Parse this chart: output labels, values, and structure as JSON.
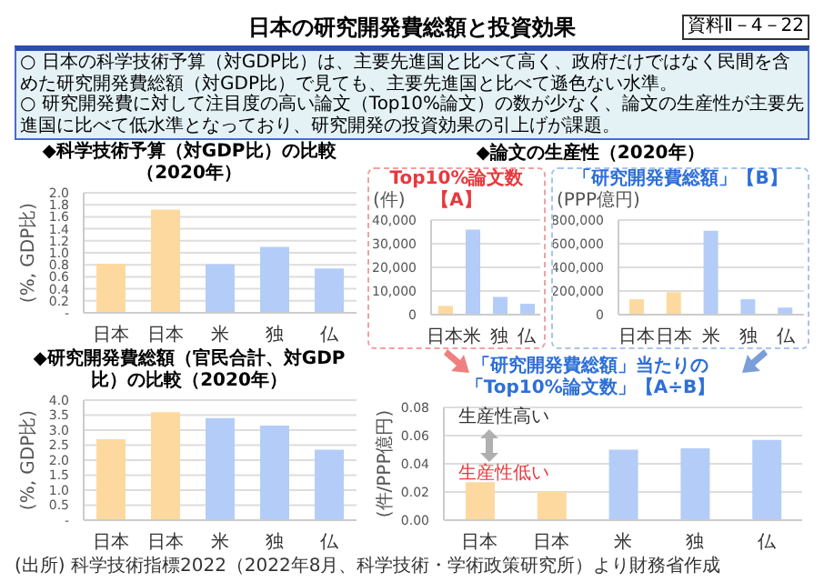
{
  "chart_data": [
    {
      "type": "other",
      "title": "日本の研究開発費総額と投資効果",
      "annotations": [
        "資料Ⅱ－4－22",
        "○ 日本の科学技術予算（対GDP比）は、主要先進国と比べて高く、政府だけではなく民間を含めた研究開発費総額（対GDP比）で見ても、主要先進国と比べて遜色ない水準。",
        "○ 研究開発費に対して注目度の高い論文（Top10%論文）の数が少なく、論文の生産性が主要先進国に比べて低水準となっており、研究開発の投資効果の引上げが課題。",
        "◆論文の生産性（2020年）"
      ]
    },
    {
      "type": "bar",
      "title": "◆科学技術予算（対GDP比）の比較（2020年）",
      "ylabel": "(%, GDP比)",
      "categories": [
        "日本",
        "日本",
        "米",
        "独",
        "仏"
      ],
      "values": [
        0.82,
        1.72,
        0.81,
        1.1,
        0.74
      ],
      "colors": [
        "#fdd9a0",
        "#fdd9a0",
        "#b4cdf8",
        "#b4cdf8",
        "#b4cdf8"
      ],
      "ylim": [
        0,
        2
      ],
      "yticks": [
        {
          "value": 0,
          "label": "-"
        },
        {
          "value": 0.2,
          "label": "0.2"
        },
        {
          "value": 0.4,
          "label": "0.4"
        },
        {
          "value": 0.6,
          "label": "0.6"
        },
        {
          "value": 0.8,
          "label": "0.8"
        },
        {
          "value": 1,
          "label": "1.0"
        },
        {
          "value": 1.2,
          "label": "1.2"
        },
        {
          "value": 1.4,
          "label": "1.4"
        },
        {
          "value": 1.6,
          "label": "1.6"
        },
        {
          "value": 1.8,
          "label": "1.8"
        },
        {
          "value": 2,
          "label": "2.0"
        }
      ],
      "grid": "y",
      "legend": false
    },
    {
      "type": "bar",
      "title": "◆研究開発費総額（官民合計、対GDP比）の比較（2020年）",
      "ylabel": "(%, GDP比)",
      "categories": [
        "日本",
        "日本",
        "米",
        "独",
        "仏"
      ],
      "values": [
        2.7,
        3.6,
        3.4,
        3.15,
        2.35
      ],
      "colors": [
        "#fdd9a0",
        "#fdd9a0",
        "#b4cdf8",
        "#b4cdf8",
        "#b4cdf8"
      ],
      "ylim": [
        0,
        4
      ],
      "yticks": [
        {
          "value": 0,
          "label": "-"
        },
        {
          "value": 0.5,
          "label": "0.5"
        },
        {
          "value": 1,
          "label": "1.0"
        },
        {
          "value": 1.5,
          "label": "1.5"
        },
        {
          "value": 2,
          "label": "2.0"
        },
        {
          "value": 2.5,
          "label": "2.5"
        },
        {
          "value": 3,
          "label": "3.0"
        },
        {
          "value": 3.5,
          "label": "3.5"
        },
        {
          "value": 4,
          "label": "4.0"
        }
      ],
      "grid": "y",
      "legend": false,
      "annotations": [
        "(出所) 科学技術指標2022（2022年8月、科学技術・学術政策研究所）より財務省作成"
      ]
    },
    {
      "type": "bar",
      "title": "Top10%論文数【A】",
      "ylabel": "(件)",
      "categories": [
        "日本",
        "米",
        "独",
        "仏"
      ],
      "values": [
        3700,
        36000,
        7500,
        4600
      ],
      "colors": [
        "#fdd9a0",
        "#b4cdf8",
        "#b4cdf8",
        "#b4cdf8"
      ],
      "ylim": [
        0,
        40000
      ],
      "yticks": [
        0,
        {
          "value": 10000,
          "label": "10,000"
        },
        {
          "value": 20000,
          "label": "20,000"
        },
        {
          "value": 30000,
          "label": "30,000"
        },
        {
          "value": 40000,
          "label": "40,000"
        }
      ],
      "grid": "y",
      "legend": false
    },
    {
      "type": "bar",
      "title": "「研究開発費総額」【B】",
      "ylabel": "(PPP億円)",
      "categories": [
        "日本",
        "日本",
        "米",
        "独",
        "仏"
      ],
      "values": [
        130000,
        190000,
        710000,
        130000,
        60000
      ],
      "colors": [
        "#fdd9a0",
        "#fdd9a0",
        "#b4cdf8",
        "#b4cdf8",
        "#b4cdf8"
      ],
      "ylim": [
        0,
        800000
      ],
      "yticks": [
        0,
        {
          "value": 200000,
          "label": "200,000"
        },
        {
          "value": 400000,
          "label": "400,000"
        },
        {
          "value": 600000,
          "label": "600,000"
        },
        {
          "value": 800000,
          "label": "800,000"
        }
      ],
      "grid": "y",
      "legend": false
    },
    {
      "type": "bar",
      "title": "「研究開発費総額」当たりの「Top10%論文数」【A÷B】",
      "ylabel": "(件/PPP億円)",
      "categories": [
        "日本",
        "日本",
        "米",
        "独",
        "仏"
      ],
      "values": [
        0.027,
        0.02,
        0.05,
        0.051,
        0.057
      ],
      "colors": [
        "#fdd9a0",
        "#fdd9a0",
        "#b4cdf8",
        "#b4cdf8",
        "#b4cdf8"
      ],
      "ylim": [
        0,
        0.08
      ],
      "yticks": [
        {
          "value": 0,
          "label": "0.00"
        },
        {
          "value": 0.02,
          "label": "0.02"
        },
        {
          "value": 0.04,
          "label": "0.04"
        },
        {
          "value": 0.06,
          "label": "0.06"
        },
        {
          "value": 0.08,
          "label": "0.08"
        }
      ],
      "grid": "y",
      "legend": false,
      "annotations": [
        "生産性高い",
        "生産性低い"
      ]
    }
  ]
}
